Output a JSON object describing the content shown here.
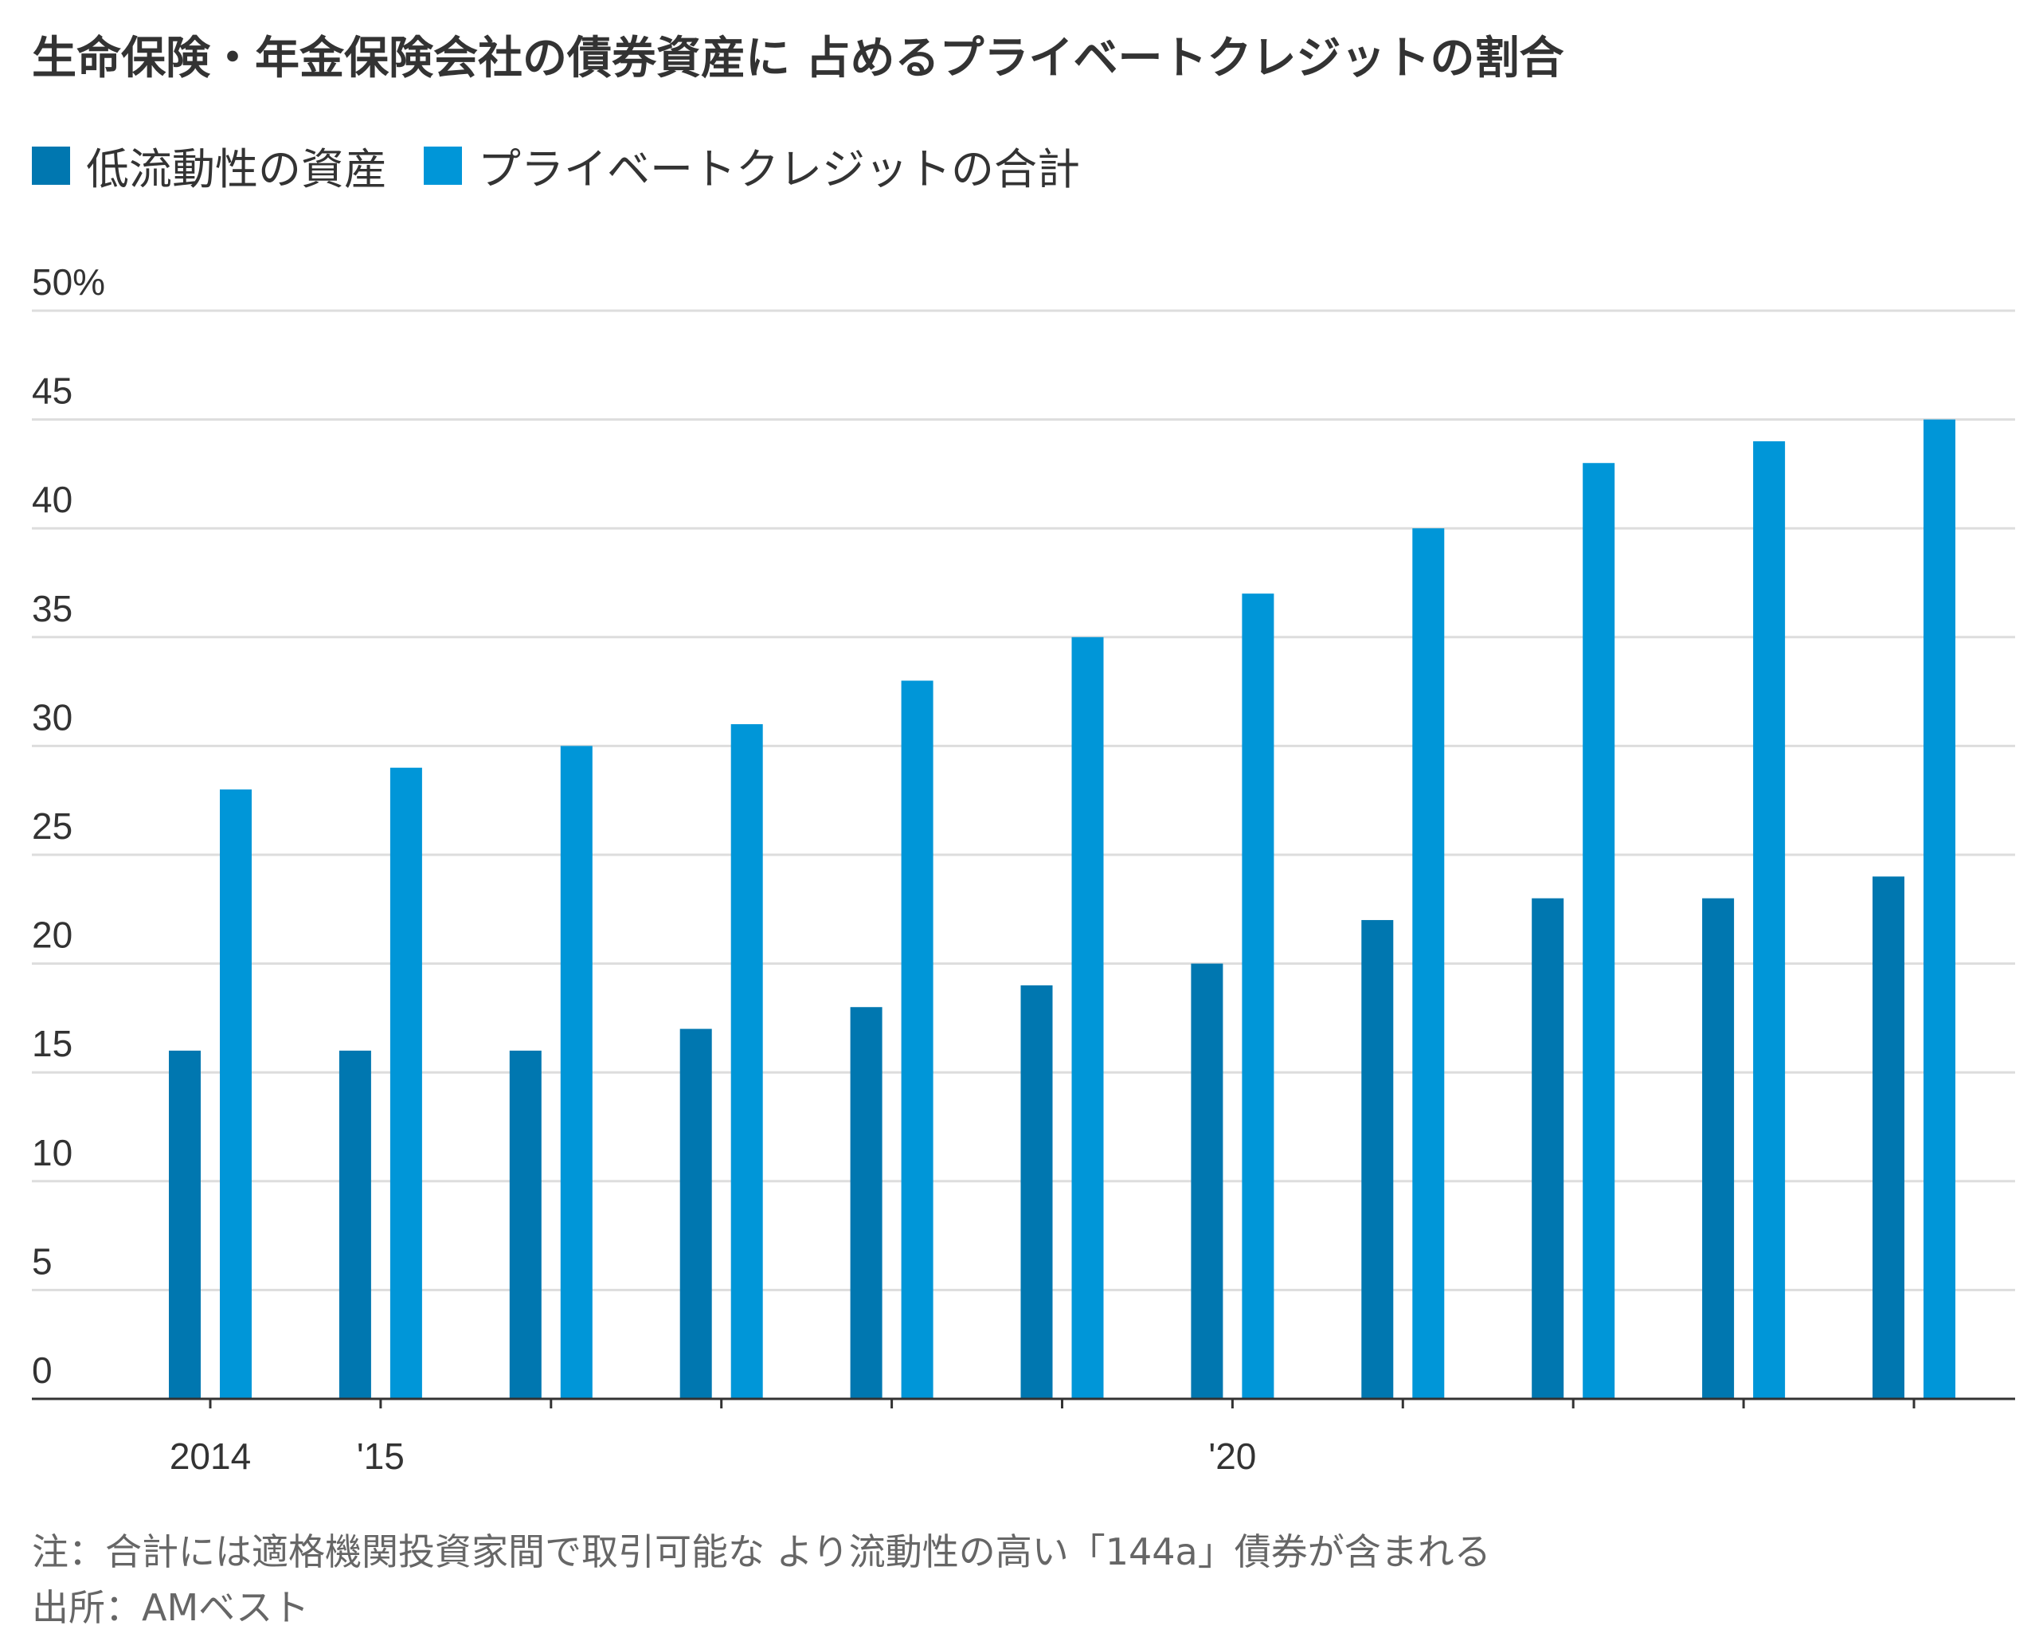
{
  "chart_data": {
    "type": "bar",
    "title": "生命保険・年金保険会社の債券資産に 占めるプライベートクレジットの割合",
    "categories": [
      "2014",
      "'15",
      "",
      "",
      "",
      "",
      "'20",
      "",
      "",
      "",
      ""
    ],
    "series": [
      {
        "name": "低流動性の資産",
        "color": "#0077b0",
        "values": [
          16,
          16,
          16,
          17,
          18,
          19,
          20,
          22,
          23,
          23,
          24
        ]
      },
      {
        "name": "プライベートクレジットの合計",
        "color": "#0096d8",
        "values": [
          28,
          29,
          30,
          31,
          33,
          35,
          37,
          40,
          43,
          44,
          45
        ]
      }
    ],
    "ylim": [
      0,
      50
    ],
    "yticks": [
      "0",
      "5",
      "10",
      "15",
      "20",
      "25",
      "30",
      "35",
      "40",
      "45",
      "50%"
    ],
    "ytick_values": [
      0,
      5,
      10,
      15,
      20,
      25,
      30,
      35,
      40,
      45,
      50
    ],
    "grid": true,
    "legend_position": "top-left",
    "xlabel": "",
    "ylabel": ""
  },
  "footnotes": {
    "note": "注：合計には適格機関投資家間で取引可能な より流動性の高い「144a」債券が含まれる",
    "source": "出所：AMベスト"
  }
}
